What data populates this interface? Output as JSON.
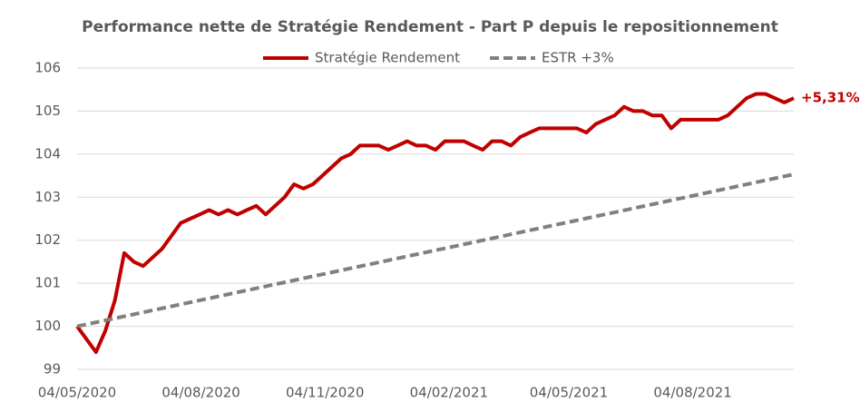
{
  "chart_data": {
    "type": "line",
    "title": "Performance nette de Stratégie Rendement - Part P depuis le repositionnement",
    "x": [
      "2020-05-04",
      "2020-05-11",
      "2020-05-18",
      "2020-05-25",
      "2020-06-01",
      "2020-06-08",
      "2020-06-15",
      "2020-06-22",
      "2020-06-29",
      "2020-07-06",
      "2020-07-13",
      "2020-07-20",
      "2020-07-27",
      "2020-08-03",
      "2020-08-10",
      "2020-08-17",
      "2020-08-24",
      "2020-08-31",
      "2020-09-07",
      "2020-09-14",
      "2020-09-21",
      "2020-09-28",
      "2020-10-05",
      "2020-10-12",
      "2020-10-19",
      "2020-10-26",
      "2020-11-02",
      "2020-11-09",
      "2020-11-16",
      "2020-11-23",
      "2020-11-30",
      "2020-12-07",
      "2020-12-14",
      "2020-12-21",
      "2020-12-28",
      "2021-01-04",
      "2021-01-11",
      "2021-01-18",
      "2021-01-25",
      "2021-02-01",
      "2021-02-08",
      "2021-02-15",
      "2021-02-22",
      "2021-03-01",
      "2021-03-08",
      "2021-03-15",
      "2021-03-22",
      "2021-03-29",
      "2021-04-05",
      "2021-04-12",
      "2021-04-19",
      "2021-04-26",
      "2021-05-03",
      "2021-05-10",
      "2021-05-17",
      "2021-05-24",
      "2021-05-31",
      "2021-06-07",
      "2021-06-14",
      "2021-06-21",
      "2021-06-28",
      "2021-07-05",
      "2021-07-12",
      "2021-07-19",
      "2021-07-26",
      "2021-08-02",
      "2021-08-09",
      "2021-08-16",
      "2021-08-23",
      "2021-08-30",
      "2021-09-06",
      "2021-09-13",
      "2021-09-20",
      "2021-09-27",
      "2021-10-04",
      "2021-10-11",
      "2021-10-18"
    ],
    "series": [
      {
        "name": "Stratégie Rendement",
        "color": "#c00000",
        "dash": false,
        "values": [
          100.0,
          99.7,
          99.4,
          99.9,
          100.6,
          101.7,
          101.5,
          101.4,
          101.6,
          101.8,
          102.1,
          102.4,
          102.5,
          102.6,
          102.7,
          102.6,
          102.7,
          102.6,
          102.7,
          102.8,
          102.6,
          102.8,
          103.0,
          103.3,
          103.2,
          103.3,
          103.5,
          103.7,
          103.9,
          104.0,
          104.2,
          104.2,
          104.2,
          104.1,
          104.2,
          104.3,
          104.2,
          104.2,
          104.1,
          104.3,
          104.3,
          104.3,
          104.2,
          104.1,
          104.3,
          104.3,
          104.2,
          104.4,
          104.5,
          104.6,
          104.6,
          104.6,
          104.6,
          104.6,
          104.5,
          104.7,
          104.8,
          104.9,
          105.1,
          105.0,
          105.0,
          104.9,
          104.9,
          104.6,
          104.8,
          104.8,
          104.8,
          104.8,
          104.8,
          104.9,
          105.1,
          105.3,
          105.4,
          105.4,
          105.3,
          105.2,
          105.3
        ]
      },
      {
        "name": "ESTR +3%",
        "color": "#808080",
        "dash": true,
        "x": [
          "2020-05-04",
          "2021-10-18"
        ],
        "values": [
          100.0,
          103.53
        ]
      }
    ],
    "annotations": [
      {
        "text": "+5,31%",
        "color": "#c00000"
      }
    ],
    "xlim": [
      "2020-05-04",
      "2021-10-18"
    ],
    "xticks": [
      {
        "value": "2020-05-04",
        "label": "04/05/2020"
      },
      {
        "value": "2020-08-04",
        "label": "04/08/2020"
      },
      {
        "value": "2020-11-04",
        "label": "04/11/2020"
      },
      {
        "value": "2021-02-04",
        "label": "04/02/2021"
      },
      {
        "value": "2021-05-04",
        "label": "04/05/2021"
      },
      {
        "value": "2021-08-04",
        "label": "04/08/2021"
      }
    ],
    "ylim": [
      99,
      106
    ],
    "yticks": [
      99,
      100,
      101,
      102,
      103,
      104,
      105,
      106
    ],
    "grid": true,
    "legend": "top"
  }
}
